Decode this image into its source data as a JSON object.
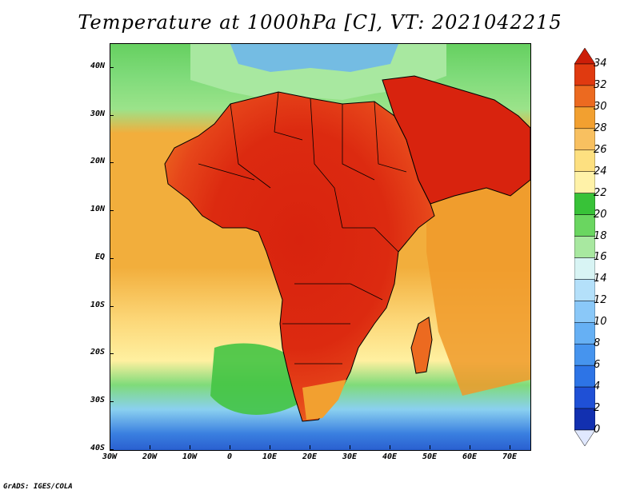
{
  "title": "Temperature at 1000hPa [C], VT: 2021042215",
  "credit": "GrADS: IGES/COLA",
  "map": {
    "lon_range": [
      -30,
      75
    ],
    "lat_range": [
      -40,
      45
    ],
    "y_ticks": [
      {
        "lat": 40,
        "label": "40N"
      },
      {
        "lat": 30,
        "label": "30N"
      },
      {
        "lat": 20,
        "label": "20N"
      },
      {
        "lat": 10,
        "label": "10N"
      },
      {
        "lat": 0,
        "label": "EQ"
      },
      {
        "lat": -10,
        "label": "10S"
      },
      {
        "lat": -20,
        "label": "20S"
      },
      {
        "lat": -30,
        "label": "30S"
      },
      {
        "lat": -40,
        "label": "40S"
      }
    ],
    "x_ticks": [
      {
        "lon": -30,
        "label": "30W"
      },
      {
        "lon": -20,
        "label": "20W"
      },
      {
        "lon": -10,
        "label": "10W"
      },
      {
        "lon": 0,
        "label": "0"
      },
      {
        "lon": 10,
        "label": "10E"
      },
      {
        "lon": 20,
        "label": "20E"
      },
      {
        "lon": 30,
        "label": "30E"
      },
      {
        "lon": 40,
        "label": "40E"
      },
      {
        "lon": 50,
        "label": "50E"
      },
      {
        "lon": 60,
        "label": "60E"
      },
      {
        "lon": 70,
        "label": "70E"
      }
    ],
    "fields": {
      "ocean_mid": "#f2ae3c",
      "ocean_warm": "#f09a2a",
      "land_hot": "#d8230e",
      "land_warm": "#e6451a"
    }
  },
  "colorbar": {
    "levels": [
      0,
      2,
      4,
      6,
      8,
      10,
      12,
      14,
      16,
      18,
      20,
      22,
      24,
      26,
      28,
      30,
      32,
      34
    ],
    "colors": [
      "#0b2080",
      "#1230b0",
      "#1f50d6",
      "#2d74e6",
      "#4694ee",
      "#66b0f4",
      "#8ac8f8",
      "#b4e0fa",
      "#d8f4f4",
      "#a8e8a0",
      "#6ad660",
      "#38c238",
      "#fff2a8",
      "#fde080",
      "#f8c060",
      "#f2a030",
      "#ec6a20",
      "#e03a10",
      "#cc1e08"
    ]
  }
}
